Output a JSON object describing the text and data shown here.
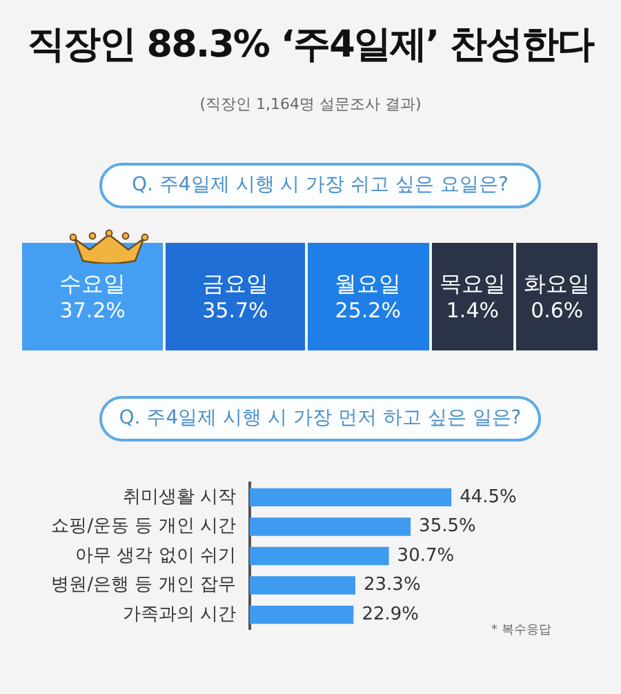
{
  "chart_data": [
    {
      "type": "other",
      "title": "직장인 88.3% ‘주4일제’ 찬성한다",
      "subtitle": "(직장인 1,164명 설문조사 결과)"
    },
    {
      "type": "other",
      "title": "Q. 주4일제 시행 시 가장 쉬고 싶은 요일은?",
      "categories": [
        "수요일",
        "금요일",
        "월요일",
        "목요일",
        "화요일"
      ],
      "values": [
        37.2,
        35.7,
        25.2,
        1.4,
        0.6
      ],
      "value_labels": [
        "37.2%",
        "35.7%",
        "25.2%",
        "1.4%",
        "0.6%"
      ],
      "colors": [
        "#449ff2",
        "#1f6fd6",
        "#1f7fe6",
        "#2b3347",
        "#2b3347"
      ]
    },
    {
      "type": "bar",
      "orientation": "horizontal",
      "title": "Q. 주4일제 시행 시 가장 먼저 하고 싶은 일은?",
      "categories": [
        "취미생활 시작",
        "쇼핑/운동 등 개인 시간",
        "아무 생각 없이 쉬기",
        "병원/은행 등 개인 잡무",
        "가족과의 시간"
      ],
      "values": [
        44.5,
        35.5,
        30.7,
        23.3,
        22.9
      ],
      "value_labels": [
        "44.5%",
        "35.5%",
        "30.7%",
        "23.3%",
        "22.9%"
      ],
      "color": "#3f9bf0",
      "annotations": [
        "* 복수응답"
      ]
    }
  ]
}
